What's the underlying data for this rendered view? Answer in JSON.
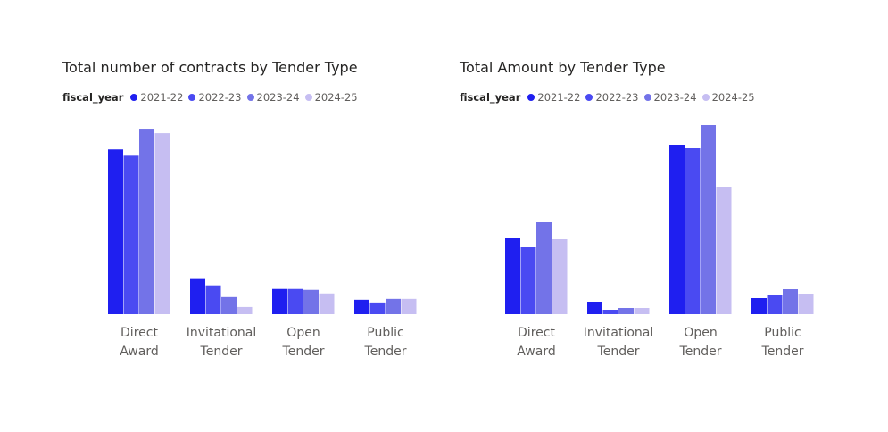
{
  "colors": {
    "2021-22": "#1f1ff0",
    "2022-23": "#4a4af2",
    "2023-24": "#7373e8",
    "2024-25": "#c6bef2"
  },
  "legend_title": "fiscal_year",
  "chart_data": [
    {
      "type": "bar",
      "title": "Total number of contracts by Tender Type",
      "categories": [
        "Direct Award",
        "Invitational Tender",
        "Open Tender",
        "Public Tender"
      ],
      "category_lines": [
        [
          "Direct",
          "Award"
        ],
        [
          "Invitational",
          "Tender"
        ],
        [
          "Open",
          "Tender"
        ],
        [
          "Public",
          "Tender"
        ]
      ],
      "series": [
        {
          "name": "2021-22",
          "values": [
            183,
            39,
            28,
            16
          ]
        },
        {
          "name": "2022-23",
          "values": [
            176,
            32,
            28,
            13
          ]
        },
        {
          "name": "2023-24",
          "values": [
            205,
            19,
            27,
            17
          ]
        },
        {
          "name": "2024-25",
          "values": [
            201,
            8,
            23,
            17
          ]
        }
      ],
      "ylim": [
        0,
        210
      ]
    },
    {
      "type": "bar",
      "title": "Total Amount by Tender Type",
      "categories": [
        "Direct Award",
        "Invitational Tender",
        "Open Tender",
        "Public Tender"
      ],
      "category_lines": [
        [
          "Direct",
          "Award"
        ],
        [
          "Invitational",
          "Tender"
        ],
        [
          "Open",
          "Tender"
        ],
        [
          "Public",
          "Tender"
        ]
      ],
      "series": [
        {
          "name": "2021-22",
          "values": [
            85,
            14,
            190,
            18
          ]
        },
        {
          "name": "2022-23",
          "values": [
            75,
            5,
            186,
            21
          ]
        },
        {
          "name": "2023-24",
          "values": [
            103,
            7,
            212,
            28
          ]
        },
        {
          "name": "2024-25",
          "values": [
            84,
            7,
            142,
            23
          ]
        }
      ],
      "ylim": [
        0,
        212
      ]
    }
  ]
}
